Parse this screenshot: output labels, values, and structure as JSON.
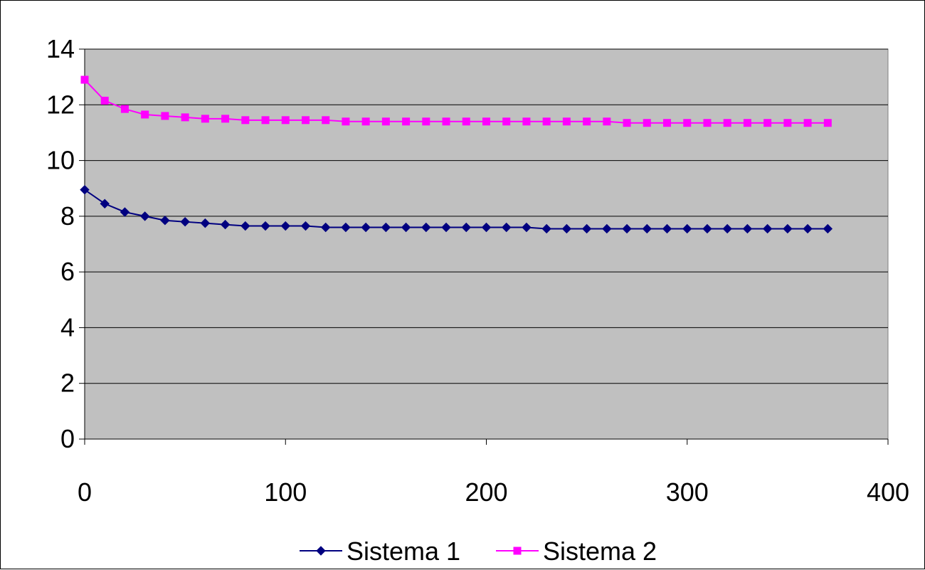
{
  "chart_data": {
    "type": "line",
    "title": "",
    "xlabel": "",
    "ylabel": "",
    "xlim": [
      0,
      400
    ],
    "ylim": [
      0,
      14
    ],
    "x_ticks": [
      0,
      100,
      200,
      300,
      400
    ],
    "y_ticks": [
      0,
      2,
      4,
      6,
      8,
      10,
      12,
      14
    ],
    "x_tick_labels": [
      "0",
      "100",
      "200",
      "300",
      "400"
    ],
    "y_tick_labels": [
      "0",
      "2",
      "4",
      "6",
      "8",
      "10",
      "12",
      "14"
    ],
    "grid": "horizontal",
    "plot_background": "#C0C0C0",
    "legend_position": "bottom",
    "x": [
      0,
      10,
      20,
      30,
      40,
      50,
      60,
      70,
      80,
      90,
      100,
      110,
      120,
      130,
      140,
      150,
      160,
      170,
      180,
      190,
      200,
      210,
      220,
      230,
      240,
      250,
      260,
      270,
      280,
      290,
      300,
      310,
      320,
      330,
      340,
      350,
      360,
      370
    ],
    "series": [
      {
        "name": "Sistema 1",
        "color": "#000080",
        "marker": "diamond",
        "values": [
          8.95,
          8.45,
          8.15,
          8.0,
          7.85,
          7.8,
          7.75,
          7.7,
          7.65,
          7.65,
          7.65,
          7.65,
          7.6,
          7.6,
          7.6,
          7.6,
          7.6,
          7.6,
          7.6,
          7.6,
          7.6,
          7.6,
          7.6,
          7.55,
          7.55,
          7.55,
          7.55,
          7.55,
          7.55,
          7.55,
          7.55,
          7.55,
          7.55,
          7.55,
          7.55,
          7.55,
          7.55,
          7.55
        ]
      },
      {
        "name": "Sistema 2",
        "color": "#FF00FF",
        "marker": "square",
        "values": [
          12.9,
          12.15,
          11.85,
          11.65,
          11.6,
          11.55,
          11.5,
          11.5,
          11.45,
          11.45,
          11.45,
          11.45,
          11.45,
          11.4,
          11.4,
          11.4,
          11.4,
          11.4,
          11.4,
          11.4,
          11.4,
          11.4,
          11.4,
          11.4,
          11.4,
          11.4,
          11.4,
          11.35,
          11.35,
          11.35,
          11.35,
          11.35,
          11.35,
          11.35,
          11.35,
          11.35,
          11.35,
          11.35
        ]
      }
    ]
  }
}
